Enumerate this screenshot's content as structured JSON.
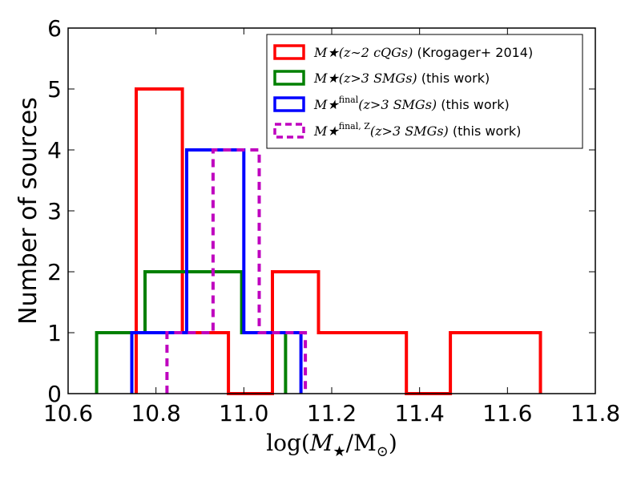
{
  "chart_data": {
    "type": "histogram",
    "title": "",
    "xlabel": "log(M★/M⊙)",
    "ylabel": "Number of sources",
    "xlim": [
      10.6,
      11.8
    ],
    "ylim": [
      0,
      6
    ],
    "xticks": [
      "10.6",
      "10.8",
      "11.0",
      "11.2",
      "11.4",
      "11.6",
      "11.8"
    ],
    "yticks": [
      "0",
      "1",
      "2",
      "3",
      "4",
      "5",
      "6"
    ],
    "legend_position": "top-right",
    "series": [
      {
        "name": "M★(z∼2 cQGs) (Krogager+ 2014)",
        "legend_math": "M★(z∼2 cQGs)",
        "legend_text": " (Krogager+ 2014)",
        "color": "#ff0000",
        "dashed": false,
        "bins": [
          {
            "x0": 10.755,
            "x1": 10.86,
            "count": 5
          },
          {
            "x0": 10.86,
            "x1": 10.965,
            "count": 1
          },
          {
            "x0": 10.965,
            "x1": 11.065,
            "count": 0
          },
          {
            "x0": 11.065,
            "x1": 11.17,
            "count": 2
          },
          {
            "x0": 11.17,
            "x1": 11.37,
            "count": 1
          },
          {
            "x0": 11.37,
            "x1": 11.47,
            "count": 0
          },
          {
            "x0": 11.47,
            "x1": 11.675,
            "count": 1
          }
        ]
      },
      {
        "name": "M★(z>3 SMGs) (this work)",
        "legend_math": "M★(z>3 SMGs)",
        "legend_text": " (this work)",
        "color": "#008000",
        "dashed": false,
        "bins": [
          {
            "x0": 10.665,
            "x1": 10.775,
            "count": 1
          },
          {
            "x0": 10.775,
            "x1": 10.995,
            "count": 2
          },
          {
            "x0": 10.995,
            "x1": 11.095,
            "count": 1
          }
        ]
      },
      {
        "name": "M★ final(z>3 SMGs) (this work)",
        "legend_math": "M★",
        "legend_sup": "final",
        "legend_math2": "(z>3 SMGs)",
        "legend_text": " (this work)",
        "color": "#0000ff",
        "dashed": false,
        "bins": [
          {
            "x0": 10.745,
            "x1": 10.87,
            "count": 1
          },
          {
            "x0": 10.87,
            "x1": 11.0,
            "count": 4
          },
          {
            "x0": 11.0,
            "x1": 11.13,
            "count": 1
          }
        ]
      },
      {
        "name": "M★ final, Z(z>3 SMGs) (this work)",
        "legend_math": "M★",
        "legend_sup": "final, Z",
        "legend_math2": "(z>3 SMGs)",
        "legend_text": " (this work)",
        "color": "#bf00bf",
        "dashed": true,
        "bins": [
          {
            "x0": 10.825,
            "x1": 10.93,
            "count": 1
          },
          {
            "x0": 10.93,
            "x1": 11.035,
            "count": 4
          },
          {
            "x0": 11.035,
            "x1": 11.14,
            "count": 1
          }
        ]
      }
    ]
  }
}
